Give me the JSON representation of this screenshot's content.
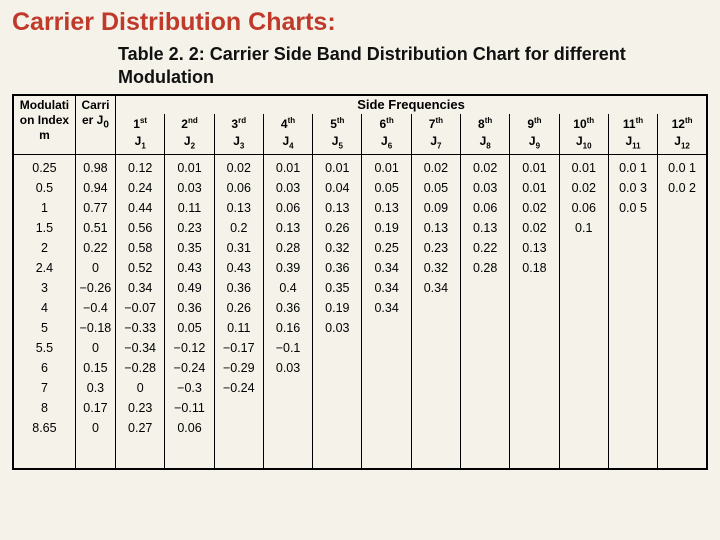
{
  "title": "Carrier Distribution Charts:",
  "subtitle": "Table 2. 2: Carrier Side Band Distribution Chart for different Modulation",
  "headers": {
    "mod_index": "Modulati on Index m",
    "carrier": "Carri er J",
    "carrier_sub": "0",
    "side_freq": "Side Frequencies",
    "ordinals": [
      "1",
      "2",
      "3",
      "4",
      "5",
      "6",
      "7",
      "8",
      "9",
      "10",
      "11",
      "12"
    ],
    "ord_suffix": [
      "st",
      "nd",
      "rd",
      "th",
      "th",
      "th",
      "th",
      "th",
      "th",
      "th",
      "th",
      "th"
    ],
    "j_label": "J"
  },
  "columns": {
    "mod": [
      "0.25",
      "0.5",
      "1",
      "1.5",
      "2",
      "2.4",
      "3",
      "4",
      "5",
      "5.5",
      "6",
      "7",
      "8",
      "8.65"
    ],
    "j0": [
      "0.98",
      "0.94",
      "0.77",
      "0.51",
      "0.22",
      "0",
      "−0.26",
      "−0.4",
      "−0.18",
      "0",
      "0.15",
      "0.3",
      "0.17",
      "0"
    ],
    "j1": [
      "0.12",
      "0.24",
      "0.44",
      "0.56",
      "0.58",
      "0.52",
      "0.34",
      "−0.07",
      "−0.33",
      "−0.34",
      "−0.28",
      "0",
      "0.23",
      "0.27"
    ],
    "j2": [
      "0.01",
      "0.03",
      "0.11",
      "0.23",
      "0.35",
      "0.43",
      "0.49",
      "0.36",
      "0.05",
      "−0.12",
      "−0.24",
      "−0.3",
      "−0.11",
      "0.06"
    ],
    "j3": [
      "",
      "0.02",
      "0.06",
      "0.13",
      "0.2",
      "0.31",
      "0.43",
      "0.36",
      "0.26",
      "0.11",
      "−0.17",
      "−0.29",
      "−0.24",
      ""
    ],
    "j4": [
      "",
      "0.01",
      "0.03",
      "0.06",
      "0.13",
      "0.28",
      "0.39",
      "0.4",
      "0.36",
      "0.16",
      "−0.1",
      "0.03",
      "",
      ""
    ],
    "j5": [
      "",
      "0.01",
      "0.04",
      "0.13",
      "0.26",
      "0.32",
      "0.36",
      "0.35",
      "0.19",
      "0.03",
      "",
      "",
      "",
      ""
    ],
    "j6": [
      "",
      "0.01",
      "0.05",
      "0.13",
      "0.19",
      "0.25",
      "0.34",
      "0.34",
      "0.34",
      "",
      "",
      "",
      "",
      ""
    ],
    "j7": [
      "",
      "0.02",
      "0.05",
      "0.09",
      "0.13",
      "0.23",
      "0.32",
      "0.34",
      "",
      "",
      "",
      "",
      "",
      ""
    ],
    "j8": [
      "",
      "0.02",
      "0.03",
      "0.06",
      "0.13",
      "0.22",
      "0.28",
      "",
      "",
      "",
      "",
      "",
      "",
      ""
    ],
    "j9": [
      "",
      "0.01",
      "0.01",
      "0.02",
      "0.02",
      "0.13",
      "0.18",
      "",
      "",
      "",
      "",
      "",
      "",
      ""
    ],
    "j10": [
      "",
      "0.01",
      "0.02",
      "0.06",
      "0.1",
      "",
      "",
      "",
      "",
      "",
      "",
      "",
      "",
      ""
    ],
    "j11": [
      "",
      "0.0 1",
      "0.0 3",
      "0.0 5",
      "",
      "",
      "",
      "",
      "",
      "",
      "",
      "",
      "",
      ""
    ],
    "j12": [
      "",
      "0.0 1",
      "0.0 2",
      "",
      "",
      "",
      "",
      "",
      "",
      "",
      "",
      "",
      "",
      ""
    ]
  },
  "style": {
    "title_color": "#c03a2b",
    "bg_color": "#f4f2e9",
    "border_color": "#000000"
  }
}
